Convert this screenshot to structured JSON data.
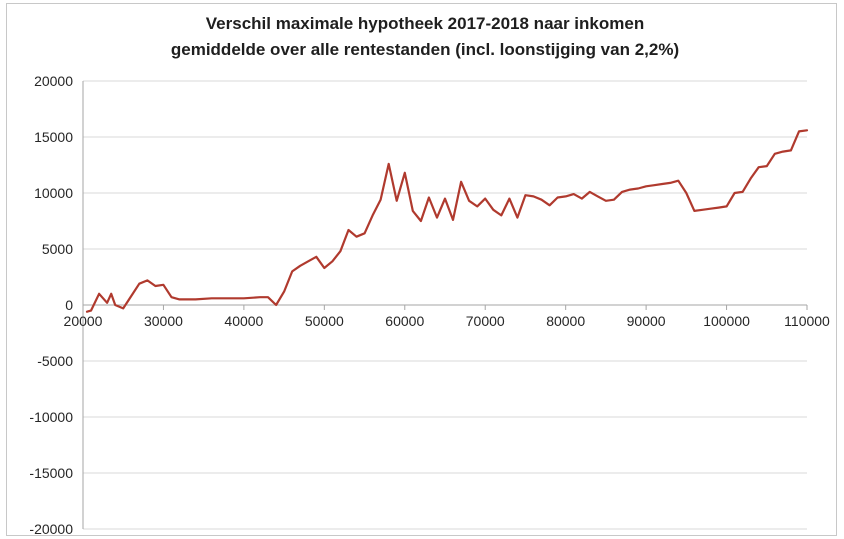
{
  "chart_data": {
    "type": "line",
    "title_lines": [
      "Verschil maximale hypotheek 2017-2018 naar inkomen",
      "gemiddelde over alle rentestanden (incl. loonstijging van 2,2%)"
    ],
    "xlabel": "",
    "ylabel": "",
    "xlim": [
      20000,
      110000
    ],
    "ylim": [
      -20000,
      20000
    ],
    "x_ticks": [
      "20000",
      "30000",
      "40000",
      "50000",
      "60000",
      "70000",
      "80000",
      "90000",
      "100000",
      "110000"
    ],
    "y_ticks": [
      "20000",
      "15000",
      "10000",
      "5000",
      "0",
      "-5000",
      "-10000",
      "-15000",
      "-20000"
    ],
    "grid": "horizontal",
    "legend": "none",
    "color": "#b03a2e",
    "series": [
      {
        "x": [
          20500,
          21000,
          22000,
          23000,
          23500,
          24000,
          25000,
          27000,
          28000,
          29000,
          30000,
          31000,
          32000,
          34000,
          36000,
          38000,
          40000,
          42000,
          43000,
          44000,
          45000,
          46000,
          47000,
          48000,
          49000,
          50000,
          51000,
          52000,
          53000,
          54000,
          55000,
          56000,
          57000,
          58000,
          59000,
          60000,
          61000,
          62000,
          63000,
          64000,
          65000,
          66000,
          67000,
          68000,
          69000,
          70000,
          71000,
          72000,
          73000,
          74000,
          75000,
          76000,
          77000,
          78000,
          79000,
          80000,
          81000,
          82000,
          83000,
          84000,
          85000,
          86000,
          87000,
          88000,
          89000,
          90000,
          91000,
          92000,
          93000,
          94000,
          95000,
          96000,
          97000,
          98000,
          99000,
          100000,
          101000,
          102000,
          103000,
          104000,
          105000,
          106000,
          107000,
          108000,
          109000,
          110000
        ],
        "y": [
          -600,
          -500,
          1000,
          200,
          1000,
          0,
          -300,
          1900,
          2200,
          1700,
          1800,
          700,
          500,
          500,
          600,
          600,
          600,
          700,
          700,
          0,
          1200,
          3000,
          3500,
          3900,
          4300,
          3300,
          3900,
          4800,
          6700,
          6100,
          6400,
          8000,
          9400,
          12600,
          9300,
          11800,
          8400,
          7500,
          9600,
          7800,
          9500,
          7600,
          11000,
          9300,
          8800,
          9500,
          8500,
          8000,
          9500,
          7800,
          9800,
          9700,
          9400,
          8900,
          9600,
          9700,
          9900,
          9500,
          10100,
          9700,
          9300,
          9400,
          10100,
          10300,
          10400,
          10600,
          10700,
          10800,
          10900,
          11100,
          10000,
          8400,
          8500,
          8600,
          8700,
          8800,
          10000,
          10100,
          11300,
          12300,
          12400,
          13500,
          13700,
          13800,
          15500,
          15600
        ]
      }
    ]
  }
}
